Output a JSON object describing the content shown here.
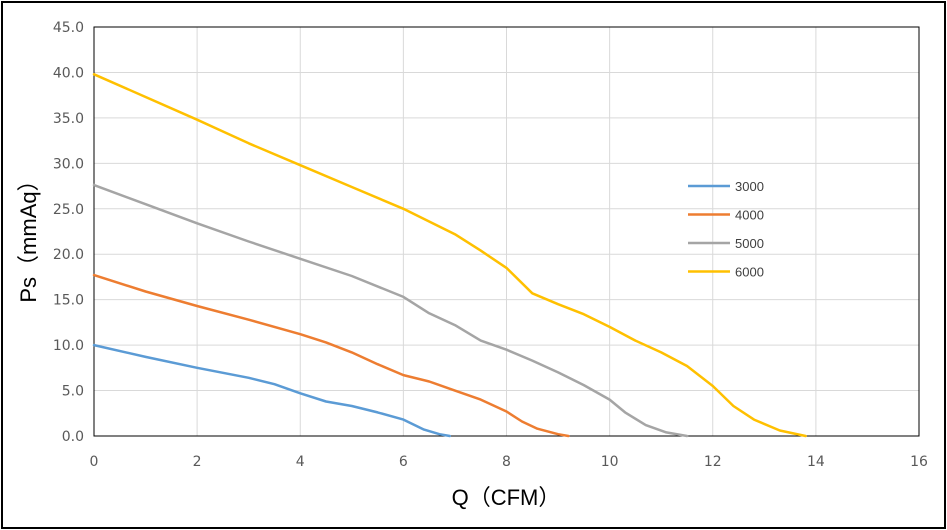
{
  "chart_data": {
    "type": "line",
    "title": "",
    "xlabel": "Q（CFM）",
    "ylabel": "Ps（mmAq）",
    "xlim": [
      0,
      16
    ],
    "ylim": [
      0,
      45
    ],
    "x_ticks": [
      "0",
      "2",
      "4",
      "6",
      "8",
      "10",
      "12",
      "14",
      "16"
    ],
    "y_ticks": [
      "0.0",
      "5.0",
      "10.0",
      "15.0",
      "20.0",
      "25.0",
      "30.0",
      "35.0",
      "40.0",
      "45.0"
    ],
    "grid": true,
    "legend_position": "right",
    "series": [
      {
        "name": "3000",
        "color": "#5B9BD5",
        "points": [
          [
            0,
            10.0
          ],
          [
            1,
            8.7
          ],
          [
            2,
            7.5
          ],
          [
            3,
            6.4
          ],
          [
            3.5,
            5.7
          ],
          [
            4,
            4.7
          ],
          [
            4.5,
            3.8
          ],
          [
            5,
            3.3
          ],
          [
            5.5,
            2.6
          ],
          [
            6,
            1.8
          ],
          [
            6.4,
            0.7
          ],
          [
            6.7,
            0.2
          ],
          [
            6.9,
            0
          ]
        ]
      },
      {
        "name": "4000",
        "color": "#ED7D31",
        "points": [
          [
            0,
            17.7
          ],
          [
            1,
            15.9
          ],
          [
            2,
            14.3
          ],
          [
            3,
            12.8
          ],
          [
            4,
            11.2
          ],
          [
            4.5,
            10.3
          ],
          [
            5,
            9.2
          ],
          [
            5.5,
            7.9
          ],
          [
            6,
            6.7
          ],
          [
            6.5,
            6.0
          ],
          [
            7,
            5.0
          ],
          [
            7.5,
            4.0
          ],
          [
            8,
            2.7
          ],
          [
            8.3,
            1.6
          ],
          [
            8.6,
            0.8
          ],
          [
            9,
            0.2
          ],
          [
            9.2,
            0
          ]
        ]
      },
      {
        "name": "5000",
        "color": "#A5A5A5",
        "points": [
          [
            0,
            27.6
          ],
          [
            1,
            25.5
          ],
          [
            2,
            23.4
          ],
          [
            3,
            21.4
          ],
          [
            4,
            19.5
          ],
          [
            5,
            17.6
          ],
          [
            6,
            15.3
          ],
          [
            6.5,
            13.5
          ],
          [
            7,
            12.2
          ],
          [
            7.5,
            10.5
          ],
          [
            8,
            9.5
          ],
          [
            8.5,
            8.3
          ],
          [
            9,
            7.0
          ],
          [
            9.5,
            5.6
          ],
          [
            10,
            4.0
          ],
          [
            10.3,
            2.6
          ],
          [
            10.7,
            1.2
          ],
          [
            11.1,
            0.4
          ],
          [
            11.5,
            0
          ]
        ]
      },
      {
        "name": "6000",
        "color": "#FFC000",
        "points": [
          [
            0,
            39.8
          ],
          [
            1,
            37.3
          ],
          [
            2,
            34.8
          ],
          [
            3,
            32.2
          ],
          [
            4,
            29.8
          ],
          [
            5,
            27.4
          ],
          [
            6,
            25.0
          ],
          [
            7,
            22.2
          ],
          [
            7.5,
            20.4
          ],
          [
            8,
            18.5
          ],
          [
            8.5,
            15.7
          ],
          [
            9,
            14.5
          ],
          [
            9.5,
            13.4
          ],
          [
            10,
            12.0
          ],
          [
            10.5,
            10.5
          ],
          [
            11,
            9.2
          ],
          [
            11.5,
            7.7
          ],
          [
            12,
            5.5
          ],
          [
            12.4,
            3.3
          ],
          [
            12.8,
            1.8
          ],
          [
            13.3,
            0.6
          ],
          [
            13.8,
            0
          ]
        ]
      }
    ]
  }
}
